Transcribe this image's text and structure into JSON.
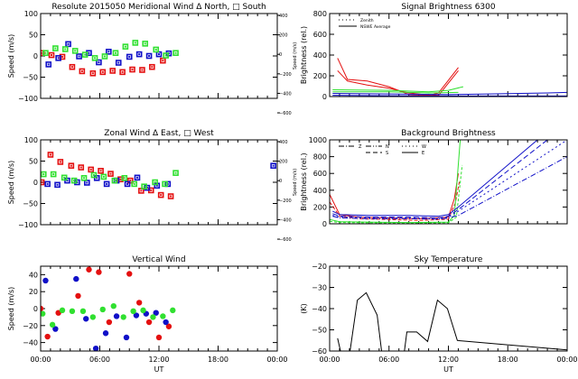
{
  "colors": {
    "red": "#e41010",
    "blue": "#1010c8",
    "green": "#30e030",
    "black": "#000000"
  },
  "x_ticks": [
    "00:00",
    "06:00",
    "12:00",
    "18:00",
    "00:00"
  ],
  "x_label": "UT",
  "chart_data": [
    {
      "id": "merid",
      "type": "scatter",
      "title": "Resolute   2015050     Meridional Wind   Δ North, □ South",
      "ylabel": "Speed (m/s)",
      "y2label": "Speed (m/s)",
      "ylim": [
        -100,
        100
      ],
      "yticks": [
        100,
        50,
        0,
        -50,
        -100
      ],
      "y2ticks": [
        "400",
        "200",
        "0",
        "-200",
        "-400",
        "-600"
      ],
      "xlim": [
        0,
        24
      ],
      "series": [
        {
          "name": "red",
          "color": "red",
          "x": [
            0.1,
            1.1,
            2.2,
            3.2,
            4.2,
            5.3,
            6.3,
            7.3,
            8.3,
            9.3,
            10.3,
            11.3,
            12.4
          ],
          "y": [
            7,
            2,
            -2,
            -26,
            -36,
            -41,
            -38,
            -35,
            -38,
            -32,
            -33,
            -26,
            -11
          ]
        },
        {
          "name": "blue",
          "color": "blue",
          "x": [
            0.8,
            1.8,
            2.8,
            3.9,
            4.9,
            5.9,
            6.9,
            7.9,
            9,
            10,
            11,
            12,
            13
          ],
          "y": [
            -20,
            -5,
            28,
            -1,
            7,
            -15,
            10,
            -16,
            -2,
            4,
            0,
            4,
            6
          ]
        },
        {
          "name": "green",
          "color": "green",
          "x": [
            0.5,
            1.5,
            2.5,
            3.5,
            4.5,
            5.5,
            6.5,
            7.6,
            8.6,
            9.6,
            10.6,
            11.7,
            12.7,
            13.7
          ],
          "y": [
            7,
            18,
            16,
            12,
            3,
            -5,
            -1,
            7,
            22,
            31,
            29,
            15,
            1,
            7
          ]
        }
      ]
    },
    {
      "id": "zonal",
      "type": "scatter",
      "title": "Zonal Wind     Δ East, □ West",
      "ylabel": "Speed (m/s)",
      "y2label": "Speed (m/s)",
      "ylim": [
        -100,
        100
      ],
      "yticks": [
        100,
        50,
        0,
        -50,
        -100
      ],
      "y2ticks": [
        "400",
        "200",
        "0",
        "-200",
        "-400",
        "-600"
      ],
      "xlim": [
        0,
        24
      ],
      "series": [
        {
          "name": "red",
          "color": "red",
          "x": [
            0.1,
            1,
            2,
            3.1,
            4.1,
            5.1,
            6.1,
            7.1,
            8.1,
            9.1,
            10.2,
            11.2,
            12.2,
            13.2
          ],
          "y": [
            0,
            65,
            48,
            39,
            35,
            30,
            27,
            20,
            7,
            4,
            -20,
            -19,
            -30,
            -33
          ]
        },
        {
          "name": "blue",
          "color": "blue",
          "x": [
            0.7,
            1.7,
            2.7,
            3.7,
            4.7,
            5.7,
            6.7,
            7.7,
            8.8,
            9.8,
            10.8,
            11.8,
            12.9,
            23.6
          ],
          "y": [
            -4,
            -6,
            4,
            0,
            -1,
            10,
            -4,
            4,
            -4,
            11,
            -13,
            -8,
            -4,
            39
          ]
        },
        {
          "name": "green",
          "color": "green",
          "x": [
            0.3,
            1.3,
            2.4,
            3.4,
            4.4,
            5.4,
            6.4,
            7.5,
            8.5,
            9.5,
            10.5,
            11.6,
            12.6,
            13.7
          ],
          "y": [
            19,
            19,
            11,
            4,
            10,
            17,
            13,
            4,
            10,
            -4,
            -10,
            0,
            -4,
            22
          ]
        }
      ]
    },
    {
      "id": "vert",
      "type": "scatter",
      "title": "Vertical Wind",
      "ylabel": "Speed (m/s)",
      "ylim": [
        -50,
        50
      ],
      "yticks": [
        40,
        20,
        0,
        -20,
        -40
      ],
      "xlim": [
        0,
        24
      ],
      "series": [
        {
          "name": "red",
          "color": "red",
          "x": [
            0,
            0.7,
            1.8,
            3.8,
            4.9,
            5.9,
            6.95,
            9,
            10,
            11,
            12,
            13
          ],
          "y": [
            0,
            -33,
            -5,
            15,
            46,
            43,
            -16,
            41,
            7,
            -16,
            -34,
            -21
          ]
        },
        {
          "name": "blue",
          "color": "blue",
          "x": [
            0.5,
            1.5,
            3.6,
            4.6,
            5.6,
            6.6,
            7.7,
            8.7,
            9.7,
            10.7,
            11.7,
            12.7
          ],
          "y": [
            33,
            -24,
            35,
            -12,
            -47,
            -29,
            -9,
            -34,
            -8,
            -6,
            -5,
            -16
          ]
        },
        {
          "name": "green",
          "color": "green",
          "x": [
            0.2,
            1.2,
            2.2,
            3.2,
            4.3,
            5.3,
            6.3,
            7.4,
            8.4,
            9.4,
            10.4,
            11.4,
            12.4,
            13.4
          ],
          "y": [
            -6,
            -19,
            -2,
            -3,
            -3,
            -10,
            -1,
            3,
            -10,
            -3,
            -2,
            -10,
            -9,
            -2
          ]
        }
      ]
    },
    {
      "id": "signal",
      "type": "line",
      "title": "Signal Brightness      6300",
      "ylabel": "Brightness (rel.)",
      "ylim": [
        0,
        800
      ],
      "yticks": [
        800,
        600,
        400,
        200,
        0
      ],
      "xlim": [
        0,
        24
      ],
      "legend": [
        "Zenith",
        "NSWE Average"
      ],
      "series": [
        {
          "name": "red-zenith",
          "color": "red",
          "x": [
            0.8,
            1.8,
            3.8,
            6,
            8,
            10,
            11,
            13
          ],
          "y": [
            370,
            165,
            150,
            95,
            20,
            10,
            35,
            280
          ]
        },
        {
          "name": "red-avg",
          "color": "red",
          "x": [
            0.8,
            1.8,
            3.8,
            6,
            8,
            9.5,
            11,
            13
          ],
          "y": [
            250,
            150,
            110,
            80,
            35,
            20,
            10,
            250
          ]
        },
        {
          "name": "green-zenith",
          "color": "green",
          "x": [
            0.3,
            6,
            10,
            12,
            13.5
          ],
          "y": [
            65,
            60,
            45,
            60,
            95
          ]
        },
        {
          "name": "green-avg",
          "color": "green",
          "x": [
            0.3,
            6,
            10,
            13
          ],
          "y": [
            45,
            45,
            35,
            40
          ]
        },
        {
          "name": "blue-zenith",
          "color": "blue",
          "x": [
            0.3,
            6,
            12,
            14,
            18,
            22,
            24
          ],
          "y": [
            30,
            25,
            20,
            22,
            28,
            35,
            40
          ]
        },
        {
          "name": "blue-avg",
          "color": "blue",
          "x": [
            0.3,
            6,
            12,
            18,
            24
          ],
          "y": [
            12,
            8,
            6,
            5,
            5
          ]
        }
      ]
    },
    {
      "id": "bg",
      "type": "line",
      "title": "Background Brightness",
      "ylabel": "Brightness (rel.)",
      "ylim": [
        0,
        1000
      ],
      "yticks": [
        1000,
        800,
        600,
        400,
        200,
        0
      ],
      "xlim": [
        0,
        24
      ],
      "legend": [
        "Z",
        "N",
        "W",
        "S",
        "E"
      ],
      "series": [
        {
          "name": "red-1",
          "color": "red",
          "x": [
            0,
            1,
            3,
            6,
            9,
            12,
            12.6,
            13
          ],
          "y": [
            350,
            110,
            80,
            70,
            60,
            80,
            300,
            600
          ]
        },
        {
          "name": "red-2",
          "color": "red",
          "x": [
            0,
            1,
            3,
            6,
            9,
            12,
            12.7,
            13.1
          ],
          "y": [
            260,
            90,
            60,
            50,
            40,
            55,
            250,
            500
          ]
        },
        {
          "name": "green-1",
          "color": "green",
          "x": [
            0,
            1,
            4,
            8,
            12,
            12.6,
            13.2
          ],
          "y": [
            50,
            25,
            20,
            15,
            20,
            100,
            1000
          ]
        },
        {
          "name": "green-2",
          "color": "green",
          "x": [
            0,
            1,
            4,
            8,
            12,
            12.8,
            13.4
          ],
          "y": [
            30,
            15,
            12,
            10,
            12,
            80,
            700
          ]
        },
        {
          "name": "blue-1",
          "color": "blue",
          "x": [
            0.3,
            1,
            4,
            8,
            11,
            12,
            13,
            21
          ],
          "y": [
            150,
            110,
            100,
            100,
            90,
            110,
            200,
            1000
          ]
        },
        {
          "name": "blue-2",
          "color": "blue",
          "x": [
            0.3,
            1,
            4,
            8,
            11,
            12,
            13,
            22
          ],
          "y": [
            120,
            90,
            80,
            80,
            70,
            90,
            170,
            1000
          ]
        },
        {
          "name": "blue-3",
          "color": "blue",
          "x": [
            0.3,
            1,
            4,
            8,
            11,
            12,
            13,
            24
          ],
          "y": [
            100,
            80,
            70,
            70,
            60,
            80,
            150,
            1000
          ]
        },
        {
          "name": "blue-4",
          "color": "blue",
          "x": [
            0.3,
            1,
            4,
            8,
            11,
            12,
            13,
            24
          ],
          "y": [
            90,
            70,
            60,
            60,
            55,
            70,
            100,
            800
          ]
        }
      ]
    },
    {
      "id": "sky",
      "type": "line",
      "title": "Sky Temperature",
      "ylabel": "(K)",
      "ylim": [
        -60,
        -20
      ],
      "yticks": [
        -20,
        -30,
        -40,
        -50,
        -60
      ],
      "xlim": [
        0,
        24
      ],
      "series": [
        {
          "name": "sky-temp",
          "color": "black",
          "x": [
            0.8,
            1.2,
            2,
            2.8,
            3.7,
            4.8,
            5.3,
            7.5,
            7.8,
            8.8,
            9.9,
            10.9,
            11.9,
            12.9,
            14,
            24
          ],
          "y": [
            -54,
            -62,
            -62,
            -36,
            -32.5,
            -43,
            -62,
            -62,
            -51,
            -51,
            -55.5,
            -36,
            -40,
            -55,
            -55.5,
            -59.5
          ]
        }
      ]
    }
  ]
}
